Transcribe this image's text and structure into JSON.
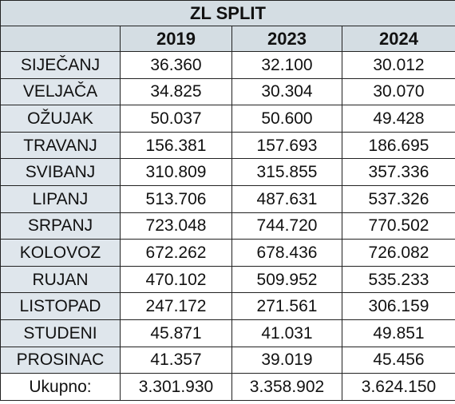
{
  "title": "ZL SPLIT",
  "columns": [
    "",
    "2019",
    "2023",
    "2024"
  ],
  "rows": [
    {
      "month": "SIJEČANJ",
      "values": [
        "36.360",
        "32.100",
        "30.012"
      ]
    },
    {
      "month": "VELJAČA",
      "values": [
        "34.825",
        "30.304",
        "30.070"
      ]
    },
    {
      "month": "OŽUJAK",
      "values": [
        "50.037",
        "50.600",
        "49.428"
      ]
    },
    {
      "month": "TRAVANJ",
      "values": [
        "156.381",
        "157.693",
        "186.695"
      ]
    },
    {
      "month": "SVIBANJ",
      "values": [
        "310.809",
        "315.855",
        "357.336"
      ]
    },
    {
      "month": "LIPANJ",
      "values": [
        "513.706",
        "487.631",
        "537.326"
      ]
    },
    {
      "month": "SRPANJ",
      "values": [
        "723.048",
        "744.720",
        "770.502"
      ]
    },
    {
      "month": "KOLOVOZ",
      "values": [
        "672.262",
        "678.436",
        "726.082"
      ]
    },
    {
      "month": "RUJAN",
      "values": [
        "470.102",
        "509.952",
        "535.233"
      ]
    },
    {
      "month": "LISTOPAD",
      "values": [
        "247.172",
        "271.561",
        "306.159"
      ]
    },
    {
      "month": "STUDENI",
      "values": [
        "45.871",
        "41.031",
        "49.851"
      ]
    },
    {
      "month": "PROSINAC",
      "values": [
        "41.357",
        "39.019",
        "45.456"
      ]
    }
  ],
  "total": {
    "label": "Ukupno:",
    "values": [
      "3.301.930",
      "3.358.902",
      "3.624.150"
    ]
  },
  "colors": {
    "header_bg": "#d4dde3",
    "month_bg": "#dfe6ec",
    "border": "#222222"
  }
}
